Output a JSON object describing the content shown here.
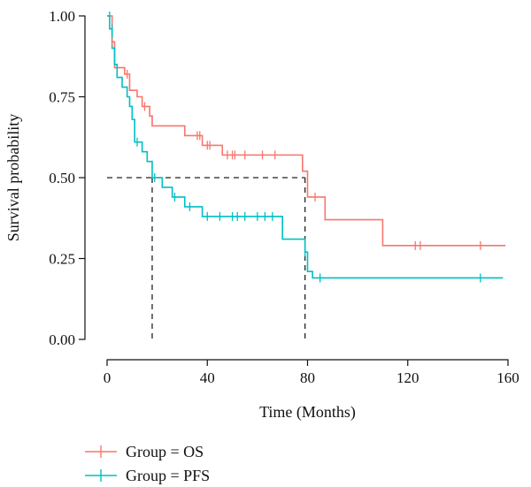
{
  "chart_data": {
    "type": "line",
    "title": "",
    "xlabel": "Time (Months)",
    "ylabel": "Survival probability",
    "xlim": [
      0,
      160
    ],
    "ylim": [
      0,
      1
    ],
    "xticks": [
      0,
      40,
      80,
      120,
      160
    ],
    "xtick_labels": [
      "0",
      "40",
      "80",
      "120",
      "160"
    ],
    "yticks": [
      0,
      0.25,
      0.5,
      0.75,
      1
    ],
    "ytick_labels": [
      "0.00",
      "0.25",
      "0.50",
      "0.75",
      "1.00"
    ],
    "grid": false,
    "legend_position": "bottom-left",
    "median_line": {
      "y": 0.5,
      "x_values": [
        18,
        79
      ]
    },
    "series": [
      {
        "name": "Group = OS",
        "color": "#F8766D",
        "steps": [
          [
            0,
            1
          ],
          [
            2,
            0.92
          ],
          [
            3,
            0.84
          ],
          [
            7,
            0.82
          ],
          [
            9,
            0.77
          ],
          [
            12,
            0.75
          ],
          [
            14,
            0.72
          ],
          [
            17,
            0.69
          ],
          [
            18,
            0.66
          ],
          [
            31,
            0.63
          ],
          [
            38,
            0.6
          ],
          [
            46,
            0.57
          ],
          [
            78,
            0.52
          ],
          [
            80,
            0.44
          ],
          [
            87,
            0.37
          ],
          [
            110,
            0.29
          ],
          [
            159,
            0.29
          ]
        ],
        "censored": [
          [
            2,
            0.92
          ],
          [
            8,
            0.82
          ],
          [
            15,
            0.72
          ],
          [
            18,
            0.68
          ],
          [
            36,
            0.63
          ],
          [
            37,
            0.63
          ],
          [
            40,
            0.6
          ],
          [
            41,
            0.6
          ],
          [
            48,
            0.57
          ],
          [
            50,
            0.57
          ],
          [
            51,
            0.57
          ],
          [
            55,
            0.57
          ],
          [
            62,
            0.57
          ],
          [
            67,
            0.57
          ],
          [
            83,
            0.44
          ],
          [
            123,
            0.29
          ],
          [
            125,
            0.29
          ],
          [
            149,
            0.29
          ]
        ]
      },
      {
        "name": "Group = PFS",
        "color": "#00BFC4",
        "steps": [
          [
            0,
            1
          ],
          [
            1,
            0.96
          ],
          [
            2,
            0.9
          ],
          [
            3,
            0.85
          ],
          [
            4,
            0.81
          ],
          [
            6,
            0.78
          ],
          [
            8,
            0.75
          ],
          [
            9,
            0.72
          ],
          [
            10,
            0.68
          ],
          [
            11,
            0.61
          ],
          [
            14,
            0.58
          ],
          [
            16,
            0.55
          ],
          [
            18,
            0.5
          ],
          [
            22,
            0.47
          ],
          [
            26,
            0.44
          ],
          [
            31,
            0.41
          ],
          [
            38,
            0.38
          ],
          [
            70,
            0.31
          ],
          [
            79,
            0.27
          ],
          [
            80,
            0.21
          ],
          [
            82,
            0.19
          ],
          [
            158,
            0.19
          ]
        ],
        "censored": [
          [
            1,
            1
          ],
          [
            2,
            0.96
          ],
          [
            12,
            0.61
          ],
          [
            19,
            0.5
          ],
          [
            27,
            0.44
          ],
          [
            33,
            0.41
          ],
          [
            40,
            0.38
          ],
          [
            45,
            0.38
          ],
          [
            50,
            0.38
          ],
          [
            52,
            0.38
          ],
          [
            55,
            0.38
          ],
          [
            60,
            0.38
          ],
          [
            63,
            0.38
          ],
          [
            66,
            0.38
          ],
          [
            79,
            0.27
          ],
          [
            85,
            0.19
          ],
          [
            149,
            0.19
          ]
        ]
      }
    ]
  }
}
